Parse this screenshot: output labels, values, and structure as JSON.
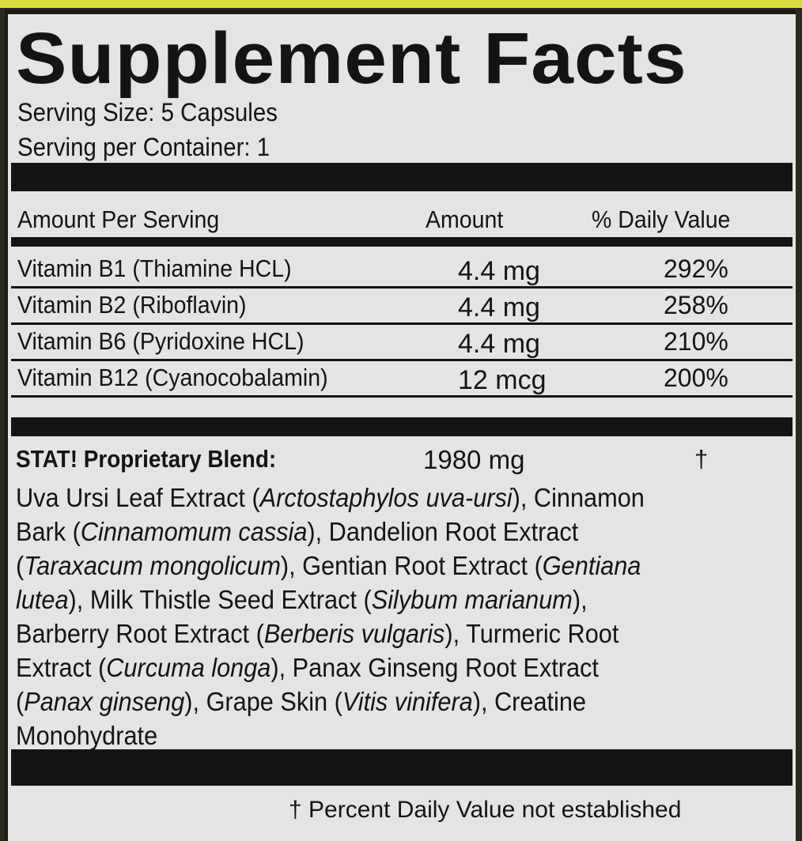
{
  "title": "Supplement Facts",
  "serving_size": "Serving Size: 5 Capsules",
  "servings_per_container": "Serving per Container: 1",
  "header": {
    "col1": "Amount Per Serving",
    "col2": "Amount",
    "col3": "% Daily Value"
  },
  "rows": [
    {
      "name": "Vitamin B1 (Thiamine HCL)",
      "amount": "4.4 mg",
      "dv": "292%"
    },
    {
      "name": "Vitamin B2 (Riboflavin)",
      "amount": "4.4 mg",
      "dv": "258%"
    },
    {
      "name": "Vitamin B6 (Pyridoxine HCL)",
      "amount": "4.4 mg",
      "dv": "210%"
    },
    {
      "name": "Vitamin B12 (Cyanocobalamin)",
      "amount": "12 mcg",
      "dv": "200%"
    }
  ],
  "blend": {
    "name": "STAT! Proprietary Blend:",
    "amount": "1980 mg",
    "dv": "†"
  },
  "ingredients": [
    [
      {
        "t": "Uva Ursi Leaf Extract (",
        "i": false
      },
      {
        "t": "Arctostaphylos uva-ursi",
        "i": true
      },
      {
        "t": "), Cinnamon",
        "i": false
      }
    ],
    [
      {
        "t": "Bark (",
        "i": false
      },
      {
        "t": "Cinnamomum cassia",
        "i": true
      },
      {
        "t": "), Dandelion Root Extract",
        "i": false
      }
    ],
    [
      {
        "t": "(",
        "i": false
      },
      {
        "t": "Taraxacum mongolicum",
        "i": true
      },
      {
        "t": "), Gentian Root Extract (",
        "i": false
      },
      {
        "t": "Gentiana",
        "i": true
      }
    ],
    [
      {
        "t": "lutea",
        "i": true
      },
      {
        "t": "), Milk Thistle Seed Extract (",
        "i": false
      },
      {
        "t": "Silybum marianum",
        "i": true
      },
      {
        "t": "),",
        "i": false
      }
    ],
    [
      {
        "t": "Barberry Root Extract (",
        "i": false
      },
      {
        "t": "Berberis vulgaris",
        "i": true
      },
      {
        "t": "), Turmeric Root",
        "i": false
      }
    ],
    [
      {
        "t": "Extract (",
        "i": false
      },
      {
        "t": "Curcuma longa",
        "i": true
      },
      {
        "t": "), Panax Ginseng Root Extract",
        "i": false
      }
    ],
    [
      {
        "t": "(",
        "i": false
      },
      {
        "t": "Panax ginseng",
        "i": true
      },
      {
        "t": "), Grape Skin (",
        "i": false
      },
      {
        "t": "Vitis vinifera",
        "i": true
      },
      {
        "t": "), Creatine",
        "i": false
      }
    ],
    [
      {
        "t": "Monohydrate",
        "i": false
      }
    ]
  ],
  "footnote": "† Percent Daily Value not established",
  "colors": {
    "label_bg": "#e3e5e2",
    "ink": "#141414",
    "cap_yellow": "#d9dd3c"
  }
}
